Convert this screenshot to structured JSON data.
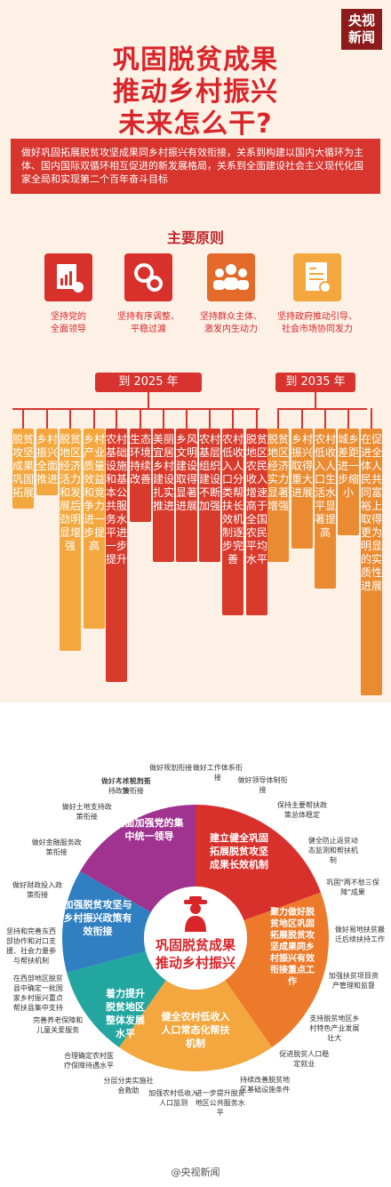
{
  "logo": {
    "line1": "央视",
    "line2": "新闻"
  },
  "title": {
    "line1": "巩固脱贫成果",
    "line2": "推动乡村振兴",
    "line3": "未来怎么干?"
  },
  "intro": "做好巩固拓展脱贫攻坚成果同乡村振兴有效衔接，关系到构建以国内大循环为主体、国内国际双循环相互促进的新发展格局，关系到全面建设社会主义现代化国家全局和实现第二个百年奋斗目标",
  "principles": {
    "heading": "主要原则",
    "items": [
      {
        "label1": "坚持党的",
        "label2": "全面领导",
        "icon": "leadership-chart-icon"
      },
      {
        "label1": "坚持有序调整、",
        "label2": "平稳过渡",
        "icon": "gears-icon"
      },
      {
        "label1": "坚持群众主体、",
        "label2": "激发内生动力",
        "icon": "people-icon"
      },
      {
        "label1": "坚持政府推动引导、",
        "label2": "社会市场协同发力",
        "icon": "document-icon"
      }
    ]
  },
  "goals2025": {
    "header": "到 2025 年",
    "items": [
      "脱贫攻坚成果巩固拓展",
      "乡村振兴全面推进",
      "脱贫地区经济活力和发展后劲明显增强",
      "乡村产业质量效益和竞争力进一步提高",
      "农村基础设施和基本公共服务水平进一步提升",
      "生态环境持续改善",
      "美丽宜居乡村建设扎实推进",
      "乡风文明建设取得显著进展",
      "农村基层组织建设不断加强",
      "农村低收入人口分类帮扶长效机制逐步完善",
      "脱贫地区农民收入增速高于全国农民平均水平"
    ]
  },
  "goals2035": {
    "header": "到 2035 年",
    "items": [
      "脱贫地区经济实力显著增强",
      "乡村振兴取得重大进展",
      "农村低收入人口生活水平显著提高",
      "城乡差距进一步缩小",
      "在促进全体人民共同富裕上取得更为明显的实质性进展"
    ]
  },
  "circle": {
    "center1": "巩固脱贫成果",
    "center2": "推动乡村振兴",
    "segments": [
      {
        "text": "全面加强党的集中统一领导",
        "color": "#a0338f"
      },
      {
        "text": "建立健全巩固拓展脱贫攻坚成果长效机制",
        "color": "#d8302a"
      },
      {
        "text": "聚力做好脱贫地区巩固拓展脱贫攻坚成果同乡村振兴有效衔接重点工作",
        "color": "#ec7a2a"
      },
      {
        "text": "健全农村低收入人口常态化帮扶机制",
        "color": "#f3a73e"
      },
      {
        "text": "着力提升脱贫地区整体发展水平",
        "color": "#23a5a0"
      },
      {
        "text": "加强脱贫攻坚与乡村振兴政策有效衔接",
        "color": "#2f7fc1"
      }
    ],
    "outer": [
      "做好考核机制衔接",
      "做好规划衔接",
      "做好工作体系衔接",
      "做好领导体制衔接",
      "保持主要帮扶政策总体稳定",
      "健全防止返贫动态监测和帮扶机制",
      "巩固\"两不愁三保障\"成果",
      "做好易地扶贫搬迁后续扶持工作",
      "加强扶贫项目资产管理和监督",
      "支持脱贫地区乡村特色产业发展壮大",
      "促进脱贫人口稳定就业",
      "持续改善脱贫地区基础设施条件",
      "进一步提升脱贫地区公共服务水平",
      "加强农村低收入人口监测",
      "分层分类实施社会救助",
      "合理确定农村医疗保障待遇水平",
      "完善养老保障和儿童关爱服务",
      "在西部地区脱贫县中确定一批国家乡村振兴重点帮扶县集中支持",
      "坚持和完善东西部协作和对口支援、社会力量参与帮扶机制",
      "做好财政投入政策衔接",
      "做好金融服务政策衔接",
      "做好土地支持政策衔接",
      "做好人才智力支持政策衔接"
    ]
  },
  "footer": "@央视新闻"
}
